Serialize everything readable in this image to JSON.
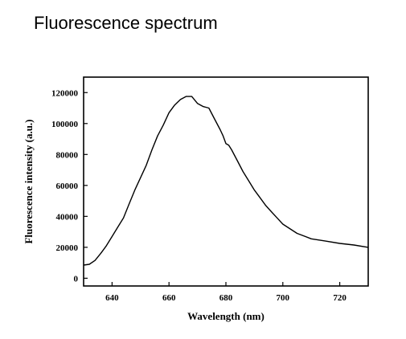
{
  "page": {
    "title": "Fluorescence spectrum"
  },
  "colors": {
    "line": "#000000",
    "axis": "#000000",
    "background": "#ffffff"
  },
  "chart_data": {
    "type": "line",
    "title": "",
    "xlabel": "Wavelength (nm)",
    "ylabel": "Fluorescence intensity (a.u.)",
    "xlim": [
      630,
      730
    ],
    "ylim": [
      -5000,
      130000
    ],
    "xticks": [
      640,
      660,
      680,
      700,
      720
    ],
    "yticks": [
      0,
      20000,
      40000,
      60000,
      80000,
      100000,
      120000
    ],
    "grid": false,
    "legend": "none",
    "series": [
      {
        "x": [
          630,
          632,
          634,
          636,
          638,
          640,
          642,
          644,
          646,
          648,
          650,
          652,
          654,
          656,
          658,
          660,
          662,
          664,
          666,
          668,
          670,
          672,
          674,
          676,
          678,
          679,
          680,
          681,
          682,
          684,
          686,
          688,
          690,
          692,
          694,
          696,
          698,
          700,
          705,
          710,
          715,
          720,
          725,
          730
        ],
        "y": [
          8500,
          9000,
          11500,
          16000,
          21000,
          27000,
          33000,
          39000,
          48000,
          57000,
          65000,
          73000,
          83000,
          92000,
          99000,
          107000,
          112000,
          115500,
          117500,
          117500,
          113000,
          111000,
          110000,
          103000,
          96000,
          92000,
          87000,
          86000,
          83000,
          76000,
          69000,
          63000,
          57000,
          52000,
          47000,
          43000,
          39000,
          35000,
          29000,
          25500,
          24000,
          22500,
          21500,
          20000
        ]
      }
    ]
  }
}
